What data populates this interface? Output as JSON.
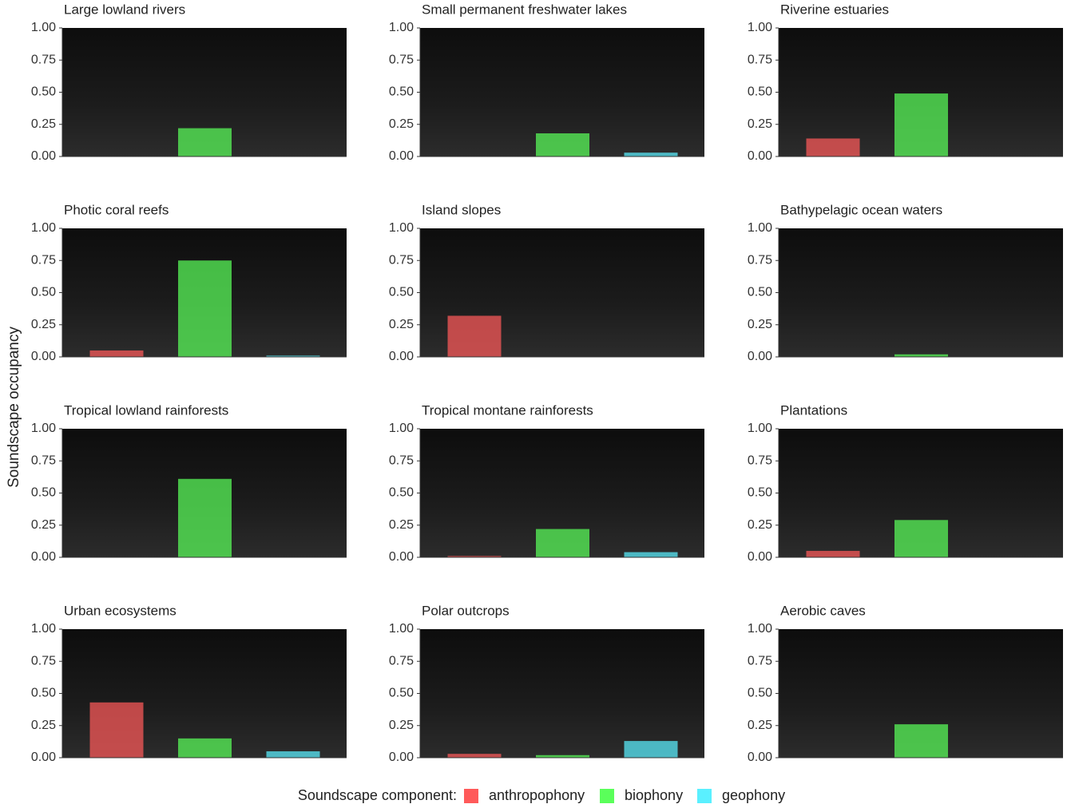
{
  "chart_data": {
    "type": "bar",
    "y_label": "Soundscape occupancy",
    "legend_title": "Soundscape component:",
    "series": [
      {
        "name": "anthropophony",
        "color": "#ff5a5a"
      },
      {
        "name": "biophony",
        "color": "#5aff5a"
      },
      {
        "name": "geophony",
        "color": "#5af0ff"
      }
    ],
    "ylim": [
      0,
      1
    ],
    "yticks": [
      {
        "value": 0,
        "label": "0.00"
      },
      {
        "value": 0.25,
        "label": "0.25"
      },
      {
        "value": 0.5,
        "label": "0.50"
      },
      {
        "value": 0.75,
        "label": "0.75"
      },
      {
        "value": 1,
        "label": "1.00"
      }
    ],
    "panels": [
      {
        "title": "Large lowland rivers",
        "values": [
          0,
          0.22,
          0
        ]
      },
      {
        "title": "Small permanent freshwater lakes",
        "values": [
          0,
          0.18,
          0.03
        ]
      },
      {
        "title": "Riverine estuaries",
        "values": [
          0.14,
          0.49,
          0
        ]
      },
      {
        "title": "Photic coral reefs",
        "values": [
          0.05,
          0.75,
          0.01
        ]
      },
      {
        "title": "Island slopes",
        "values": [
          0.32,
          0,
          0
        ]
      },
      {
        "title": "Bathypelagic ocean waters",
        "values": [
          0,
          0.02,
          0
        ]
      },
      {
        "title": "Tropical lowland rainforests",
        "values": [
          0,
          0.61,
          0
        ]
      },
      {
        "title": "Tropical montane rainforests",
        "values": [
          0.01,
          0.22,
          0.04
        ]
      },
      {
        "title": "Plantations",
        "values": [
          0.05,
          0.29,
          0
        ]
      },
      {
        "title": "Urban ecosystems",
        "values": [
          0.43,
          0.15,
          0.05
        ]
      },
      {
        "title": "Polar outcrops",
        "values": [
          0.03,
          0.02,
          0.13
        ]
      },
      {
        "title": "Aerobic caves",
        "values": [
          0,
          0.26,
          0
        ]
      }
    ]
  }
}
